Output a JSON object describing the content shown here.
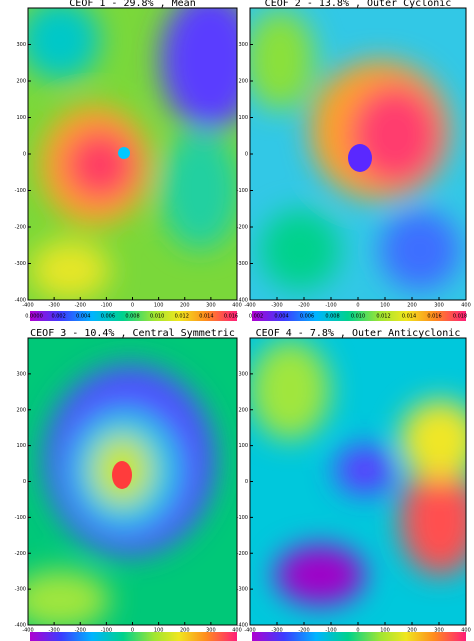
{
  "axes": {
    "xlim": [
      -400,
      400
    ],
    "ylim": [
      -400,
      400
    ],
    "xticks": [
      -400,
      -300,
      -200,
      -100,
      0,
      100,
      200,
      300,
      400
    ],
    "yticks": [
      -400,
      -300,
      -200,
      -100,
      0,
      100,
      200,
      300
    ]
  },
  "panels": [
    {
      "title": "CEOF 1 - 29.8% , Mean",
      "colorbar_labels": [
        "0.0000",
        "0.002",
        "0.004",
        "0.006",
        "0.008",
        "0.010",
        "0.012",
        "0.014",
        "0.016"
      ]
    },
    {
      "title": "CEOF 2 - 13.8% , Outer Cyclonic",
      "colorbar_labels": [
        "0.002",
        "0.004",
        "0.006",
        "0.008",
        "0.010",
        "0.012",
        "0.014",
        "0.016",
        "0.018"
      ]
    },
    {
      "title": "CEOF 3 - 10.4% , Central Symmetric",
      "colorbar_labels": []
    },
    {
      "title": "CEOF 4 - 7.8% , Outer Anticyclonic",
      "colorbar_labels": []
    }
  ]
}
